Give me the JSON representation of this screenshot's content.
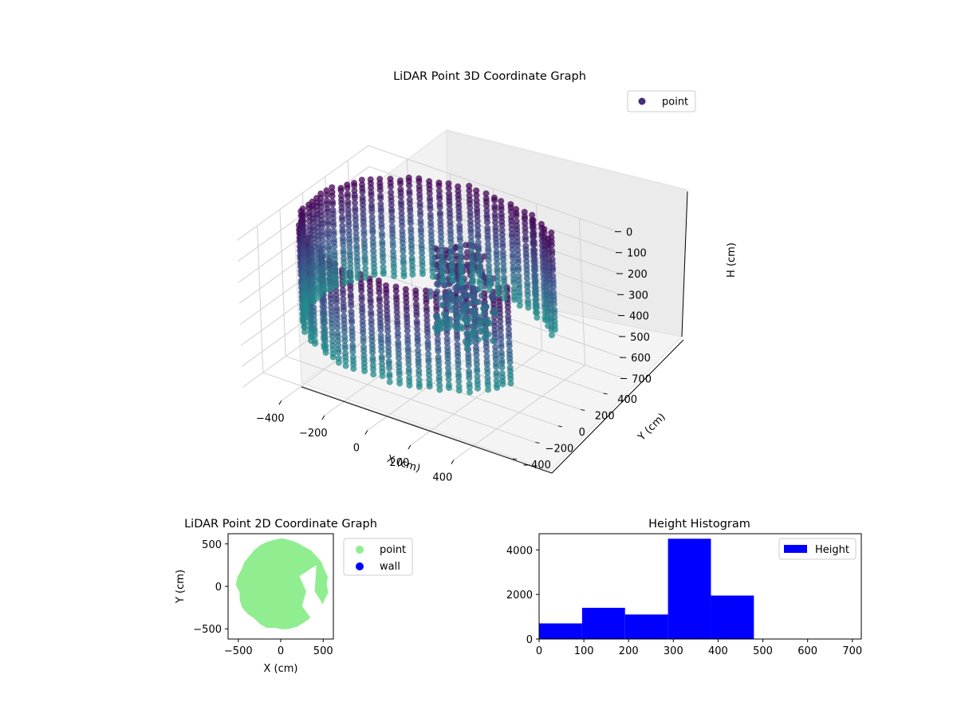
{
  "chart_data": [
    {
      "type": "scatter3d",
      "title": "LiDAR Point 3D Coordinate Graph",
      "xlabel": "X (cm)",
      "ylabel": "Y (cm)",
      "zlabel": "H (cm)",
      "x_ticks": [
        "−400",
        "−200",
        "0",
        "200",
        "400"
      ],
      "y_ticks": [
        "−400",
        "−200",
        "0",
        "200",
        "400"
      ],
      "z_ticks": [
        "0",
        "100",
        "200",
        "300",
        "400",
        "500",
        "600",
        "700"
      ],
      "xlim": [
        -580,
        580
      ],
      "ylim": [
        -580,
        580
      ],
      "zlim": [
        0,
        700
      ],
      "z_inverted": true,
      "legend": {
        "label": "point",
        "position": "top-right"
      },
      "colors": {
        "near_top": "#440154",
        "mid": "#3b528b",
        "low": "#21918c",
        "legend_marker": "#472d7b"
      },
      "wall": {
        "radius": 520,
        "height_range": [
          0,
          480
        ],
        "gap_angle_deg": [
          -20,
          40
        ]
      },
      "grid": true
    },
    {
      "type": "scatter",
      "title": "LiDAR Point 2D Coordinate Graph",
      "xlabel": "X (cm)",
      "ylabel": "Y (cm)",
      "x_ticks": [
        "−500",
        "0",
        "500"
      ],
      "y_ticks": [
        "−500",
        "0",
        "500"
      ],
      "xlim": [
        -620,
        620
      ],
      "ylim": [
        -620,
        620
      ],
      "series": [
        {
          "name": "point",
          "color": "#90ee90"
        },
        {
          "name": "wall",
          "color": "#0000ff"
        }
      ],
      "legend": {
        "position": "outside-right"
      }
    },
    {
      "type": "bar",
      "title": "Height Histogram",
      "bin_edges": [
        0,
        96,
        192,
        288,
        384,
        480
      ],
      "values": [
        700,
        1400,
        1100,
        4500,
        1950
      ],
      "x_ticks": [
        "0",
        "100",
        "200",
        "300",
        "400",
        "500",
        "600",
        "700"
      ],
      "y_ticks": [
        "0",
        "2000",
        "4000"
      ],
      "xlim": [
        0,
        720
      ],
      "ylim": [
        0,
        4725
      ],
      "series_name": "Height",
      "color": "#0000ff",
      "legend": {
        "position": "top-right"
      }
    }
  ]
}
